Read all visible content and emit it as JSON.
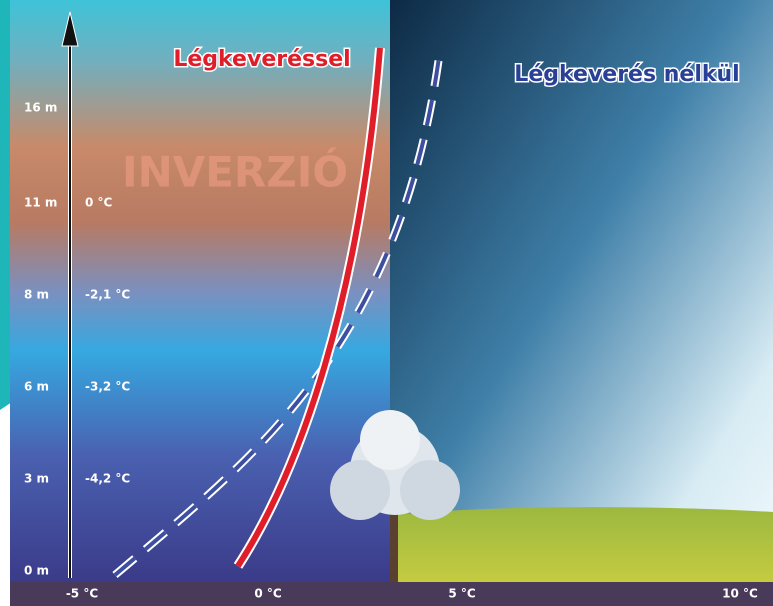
{
  "labels": {
    "with_mixing": "Légkeveréssel",
    "without_mixing": "Légkeverés nélkül",
    "inversion": "INVERZIÓ"
  },
  "heights": [
    "16 m",
    "11 m",
    "8 m",
    "6 m",
    "3 m",
    "0 m"
  ],
  "temperatures": [
    "0 °C",
    "-2,1 °C",
    "-3,2 °C",
    "-4,2 °C"
  ],
  "x_labels": [
    "-5 °C",
    "0 °C",
    "5 °C",
    "10 °C"
  ]
}
